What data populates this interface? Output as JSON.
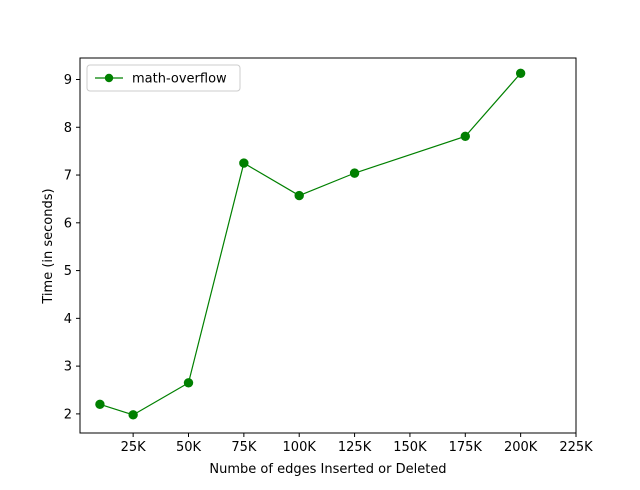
{
  "chart_data": {
    "type": "line",
    "title": "",
    "xlabel": "Numbe of edges Inserted or Deleted",
    "ylabel": "Time (in seconds)",
    "xlim": [
      1000,
      225000
    ],
    "ylim": [
      1.6,
      9.45
    ],
    "x_ticks": [
      25000,
      50000,
      75000,
      100000,
      125000,
      150000,
      175000,
      200000,
      225000
    ],
    "x_tick_labels": [
      "25K",
      "50K",
      "75K",
      "100K",
      "125K",
      "150K",
      "175K",
      "200K",
      "225K"
    ],
    "y_ticks": [
      2,
      3,
      4,
      5,
      6,
      7,
      8,
      9
    ],
    "y_tick_labels": [
      "2",
      "3",
      "4",
      "5",
      "6",
      "7",
      "8",
      "9"
    ],
    "grid": false,
    "legend": {
      "position": "top-left"
    },
    "series": [
      {
        "name": "math-overflow",
        "color": "#008000",
        "marker": "circle",
        "x": [
          10000,
          25000,
          50000,
          75000,
          100000,
          125000,
          175000,
          200000
        ],
        "y": [
          2.2,
          1.98,
          2.65,
          7.25,
          6.57,
          7.04,
          7.81,
          9.13
        ]
      }
    ]
  }
}
